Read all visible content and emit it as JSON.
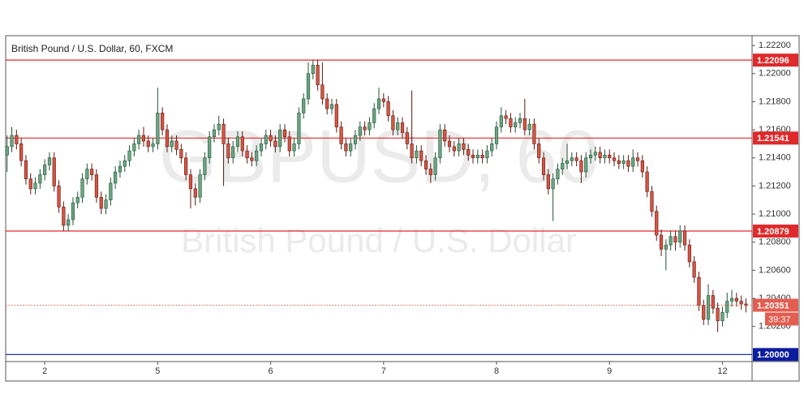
{
  "chart_data": {
    "type": "candlestick",
    "title": "British Pound / U.S. Dollar, 60, FXCM",
    "watermark": "GBPUSD, 60",
    "watermark_subtitle": "British Pound / U.S. Dollar",
    "up_color": "#6ba583",
    "up_border": "#225437",
    "down_color": "#d75442",
    "down_border": "#5b1a13",
    "ylim": [
      1.1995,
      1.2227
    ],
    "yticks": [
      {
        "value": 1.202,
        "label": "1.20200"
      },
      {
        "value": 1.204,
        "label": "1.20400"
      },
      {
        "value": 1.206,
        "label": "1.20600"
      },
      {
        "value": 1.208,
        "label": "1.20800"
      },
      {
        "value": 1.21,
        "label": "1.21000"
      },
      {
        "value": 1.212,
        "label": "1.21200"
      },
      {
        "value": 1.214,
        "label": "1.21400"
      },
      {
        "value": 1.216,
        "label": "1.21600"
      },
      {
        "value": 1.218,
        "label": "1.21800"
      },
      {
        "value": 1.22,
        "label": "1.22000"
      },
      {
        "value": 1.222,
        "label": "1.22200"
      }
    ],
    "xlim": [
      -0.3,
      158.3
    ],
    "xticks": [
      {
        "value": 8,
        "label": "2"
      },
      {
        "value": 32,
        "label": "5"
      },
      {
        "value": 56,
        "label": "6"
      },
      {
        "value": 80,
        "label": "7"
      },
      {
        "value": 104,
        "label": "8"
      },
      {
        "value": 128,
        "label": "9"
      },
      {
        "value": 152,
        "label": "12"
      }
    ],
    "levels": [
      {
        "value": 1.22096,
        "color": "#e0292b"
      },
      {
        "value": 1.21541,
        "color": "#e0292b"
      },
      {
        "value": 1.20879,
        "color": "#e0292b"
      },
      {
        "value": 1.2,
        "label": "1.20000",
        "color": "#0b1c9e"
      }
    ],
    "last_price": {
      "value": 1.20351,
      "color": "#e35d50",
      "countdown": "39:37"
    },
    "candles": [
      [
        1.2142,
        1.2156,
        1.213,
        1.2148
      ],
      [
        1.2148,
        1.2162,
        1.2144,
        1.2156
      ],
      [
        1.2156,
        1.216,
        1.2146,
        1.215
      ],
      [
        1.215,
        1.2154,
        1.2134,
        1.2138
      ],
      [
        1.2138,
        1.2142,
        1.2121,
        1.2125
      ],
      [
        1.2125,
        1.2129,
        1.2114,
        1.2118
      ],
      [
        1.2118,
        1.2126,
        1.2114,
        1.2122
      ],
      [
        1.2122,
        1.2132,
        1.2118,
        1.2128
      ],
      [
        1.2128,
        1.2139,
        1.2124,
        1.2135
      ],
      [
        1.2135,
        1.2144,
        1.2131,
        1.214
      ],
      [
        1.214,
        1.2144,
        1.2116,
        1.212
      ],
      [
        1.212,
        1.2124,
        1.2101,
        1.2105
      ],
      [
        1.2105,
        1.2109,
        1.2088,
        1.2092
      ],
      [
        1.2092,
        1.21,
        1.2088,
        1.2096
      ],
      [
        1.2096,
        1.2112,
        1.2092,
        1.2108
      ],
      [
        1.2108,
        1.2116,
        1.2104,
        1.2112
      ],
      [
        1.2112,
        1.2129,
        1.2108,
        1.2125
      ],
      [
        1.2125,
        1.2136,
        1.2121,
        1.2132
      ],
      [
        1.2132,
        1.2136,
        1.2124,
        1.2128
      ],
      [
        1.2128,
        1.2132,
        1.2108,
        1.2112
      ],
      [
        1.2112,
        1.2116,
        1.21,
        1.2104
      ],
      [
        1.2104,
        1.2114,
        1.21,
        1.211
      ],
      [
        1.211,
        1.2126,
        1.2106,
        1.2122
      ],
      [
        1.2122,
        1.2134,
        1.2118,
        1.213
      ],
      [
        1.213,
        1.2138,
        1.2126,
        1.2134
      ],
      [
        1.2134,
        1.2142,
        1.213,
        1.2138
      ],
      [
        1.2138,
        1.2149,
        1.2134,
        1.2145
      ],
      [
        1.2145,
        1.2154,
        1.2141,
        1.215
      ],
      [
        1.215,
        1.216,
        1.2146,
        1.2156
      ],
      [
        1.2156,
        1.2162,
        1.2148,
        1.2152
      ],
      [
        1.2152,
        1.2156,
        1.2144,
        1.2148
      ],
      [
        1.2148,
        1.2154,
        1.2144,
        1.215
      ],
      [
        1.215,
        1.219,
        1.2146,
        1.2172
      ],
      [
        1.2172,
        1.2176,
        1.2156,
        1.216
      ],
      [
        1.216,
        1.2164,
        1.2144,
        1.2148
      ],
      [
        1.2148,
        1.2156,
        1.2144,
        1.2152
      ],
      [
        1.2152,
        1.2156,
        1.2142,
        1.2146
      ],
      [
        1.2146,
        1.215,
        1.2136,
        1.214
      ],
      [
        1.214,
        1.2144,
        1.2124,
        1.2128
      ],
      [
        1.2128,
        1.2132,
        1.2104,
        1.2118
      ],
      [
        1.2118,
        1.2122,
        1.2106,
        1.2112
      ],
      [
        1.2112,
        1.2132,
        1.2108,
        1.2128
      ],
      [
        1.2128,
        1.2144,
        1.2124,
        1.214
      ],
      [
        1.214,
        1.2159,
        1.2136,
        1.2155
      ],
      [
        1.2155,
        1.2164,
        1.2151,
        1.216
      ],
      [
        1.216,
        1.217,
        1.2156,
        1.2164
      ],
      [
        1.2164,
        1.2168,
        1.212,
        1.215
      ],
      [
        1.215,
        1.2154,
        1.2136,
        1.214
      ],
      [
        1.214,
        1.2152,
        1.2136,
        1.2148
      ],
      [
        1.2148,
        1.2159,
        1.2144,
        1.2155
      ],
      [
        1.2155,
        1.2159,
        1.2141,
        1.2145
      ],
      [
        1.2145,
        1.2149,
        1.2136,
        1.214
      ],
      [
        1.214,
        1.2144,
        1.2134,
        1.2138
      ],
      [
        1.2138,
        1.2149,
        1.2134,
        1.2145
      ],
      [
        1.2145,
        1.2154,
        1.2141,
        1.215
      ],
      [
        1.215,
        1.216,
        1.2146,
        1.2156
      ],
      [
        1.2156,
        1.216,
        1.2148,
        1.2152
      ],
      [
        1.2152,
        1.2156,
        1.2144,
        1.2148
      ],
      [
        1.2148,
        1.2164,
        1.2144,
        1.216
      ],
      [
        1.216,
        1.2164,
        1.2151,
        1.2155
      ],
      [
        1.2155,
        1.2159,
        1.2141,
        1.2145
      ],
      [
        1.2145,
        1.2154,
        1.2141,
        1.215
      ],
      [
        1.215,
        1.2176,
        1.2146,
        1.2172
      ],
      [
        1.2172,
        1.2186,
        1.2168,
        1.2182
      ],
      [
        1.2182,
        1.2208,
        1.2178,
        1.22
      ],
      [
        1.22,
        1.221,
        1.2196,
        1.2206
      ],
      [
        1.2206,
        1.221,
        1.2188,
        1.2192
      ],
      [
        1.2192,
        1.2208,
        1.2178,
        1.2182
      ],
      [
        1.2182,
        1.2186,
        1.2171,
        1.2175
      ],
      [
        1.2175,
        1.2182,
        1.2171,
        1.2178
      ],
      [
        1.2178,
        1.2182,
        1.2158,
        1.2162
      ],
      [
        1.2162,
        1.2166,
        1.2146,
        1.215
      ],
      [
        1.215,
        1.2154,
        1.2141,
        1.2145
      ],
      [
        1.2145,
        1.2154,
        1.2141,
        1.215
      ],
      [
        1.215,
        1.216,
        1.2146,
        1.2156
      ],
      [
        1.2156,
        1.2166,
        1.2152,
        1.2162
      ],
      [
        1.2162,
        1.2166,
        1.2156,
        1.216
      ],
      [
        1.216,
        1.2169,
        1.2156,
        1.2165
      ],
      [
        1.2165,
        1.2179,
        1.2161,
        1.2175
      ],
      [
        1.2175,
        1.219,
        1.2171,
        1.2182
      ],
      [
        1.2182,
        1.2186,
        1.2176,
        1.218
      ],
      [
        1.218,
        1.2184,
        1.2166,
        1.217
      ],
      [
        1.217,
        1.2174,
        1.2156,
        1.216
      ],
      [
        1.216,
        1.2169,
        1.2156,
        1.2165
      ],
      [
        1.2165,
        1.2169,
        1.2154,
        1.2158
      ],
      [
        1.2158,
        1.2162,
        1.2146,
        1.215
      ],
      [
        1.215,
        1.2188,
        1.2136,
        1.214
      ],
      [
        1.214,
        1.2149,
        1.2136,
        1.2145
      ],
      [
        1.2145,
        1.2149,
        1.2134,
        1.2138
      ],
      [
        1.2138,
        1.2142,
        1.2128,
        1.2132
      ],
      [
        1.2132,
        1.2136,
        1.2122,
        1.2128
      ],
      [
        1.2128,
        1.2144,
        1.2124,
        1.214
      ],
      [
        1.214,
        1.2164,
        1.2136,
        1.216
      ],
      [
        1.216,
        1.2164,
        1.2148,
        1.2152
      ],
      [
        1.2152,
        1.2156,
        1.2144,
        1.2148
      ],
      [
        1.2148,
        1.2152,
        1.2141,
        1.2145
      ],
      [
        1.2145,
        1.2154,
        1.2141,
        1.215
      ],
      [
        1.215,
        1.2154,
        1.2142,
        1.2146
      ],
      [
        1.2146,
        1.215,
        1.2138,
        1.2142
      ],
      [
        1.2142,
        1.2146,
        1.2136,
        1.214
      ],
      [
        1.214,
        1.2146,
        1.2136,
        1.2142
      ],
      [
        1.2142,
        1.2146,
        1.2136,
        1.214
      ],
      [
        1.214,
        1.2149,
        1.2136,
        1.2145
      ],
      [
        1.2145,
        1.2154,
        1.2141,
        1.215
      ],
      [
        1.215,
        1.2166,
        1.2146,
        1.2162
      ],
      [
        1.2162,
        1.2176,
        1.2158,
        1.217
      ],
      [
        1.217,
        1.2174,
        1.2164,
        1.2168
      ],
      [
        1.2168,
        1.2172,
        1.2158,
        1.2162
      ],
      [
        1.2162,
        1.2169,
        1.2158,
        1.2165
      ],
      [
        1.2165,
        1.2172,
        1.2161,
        1.2168
      ],
      [
        1.2168,
        1.2182,
        1.2156,
        1.216
      ],
      [
        1.216,
        1.2168,
        1.2156,
        1.2164
      ],
      [
        1.2164,
        1.2168,
        1.2146,
        1.215
      ],
      [
        1.215,
        1.2154,
        1.2136,
        1.214
      ],
      [
        1.214,
        1.2144,
        1.2124,
        1.2128
      ],
      [
        1.2128,
        1.2132,
        1.2114,
        1.2118
      ],
      [
        1.2118,
        1.2129,
        1.2095,
        1.2125
      ],
      [
        1.2125,
        1.2136,
        1.2121,
        1.2132
      ],
      [
        1.2132,
        1.214,
        1.2128,
        1.2136
      ],
      [
        1.2136,
        1.215,
        1.2132,
        1.2138
      ],
      [
        1.2138,
        1.2144,
        1.2134,
        1.214
      ],
      [
        1.214,
        1.2144,
        1.2134,
        1.2138
      ],
      [
        1.2138,
        1.2142,
        1.2122,
        1.213
      ],
      [
        1.213,
        1.2144,
        1.2126,
        1.214
      ],
      [
        1.214,
        1.2146,
        1.2136,
        1.2142
      ],
      [
        1.2142,
        1.2148,
        1.2138,
        1.2144
      ],
      [
        1.2144,
        1.2148,
        1.2136,
        1.214
      ],
      [
        1.214,
        1.2146,
        1.2136,
        1.2142
      ],
      [
        1.2142,
        1.2146,
        1.2136,
        1.214
      ],
      [
        1.214,
        1.2144,
        1.2134,
        1.2138
      ],
      [
        1.2138,
        1.2142,
        1.2132,
        1.2136
      ],
      [
        1.2136,
        1.2142,
        1.2132,
        1.2138
      ],
      [
        1.2138,
        1.2142,
        1.213,
        1.2134
      ],
      [
        1.2134,
        1.2146,
        1.213,
        1.214
      ],
      [
        1.214,
        1.2144,
        1.2134,
        1.2138
      ],
      [
        1.2138,
        1.2142,
        1.2126,
        1.213
      ],
      [
        1.213,
        1.2134,
        1.2112,
        1.2116
      ],
      [
        1.2116,
        1.212,
        1.2098,
        1.2102
      ],
      [
        1.2102,
        1.2106,
        1.2081,
        1.2085
      ],
      [
        1.2085,
        1.2089,
        1.207,
        1.2075
      ],
      [
        1.2075,
        1.2082,
        1.206,
        1.2078
      ],
      [
        1.2078,
        1.2088,
        1.2074,
        1.2084
      ],
      [
        1.2084,
        1.2088,
        1.2074,
        1.208
      ],
      [
        1.208,
        1.2092,
        1.2076,
        1.2088
      ],
      [
        1.2088,
        1.2092,
        1.2074,
        1.2078
      ],
      [
        1.2078,
        1.2082,
        1.2062,
        1.2066
      ],
      [
        1.2066,
        1.207,
        1.2051,
        1.2055
      ],
      [
        1.2055,
        1.2059,
        1.2031,
        1.2035
      ],
      [
        1.2035,
        1.2039,
        1.2021,
        1.2025
      ],
      [
        1.2025,
        1.205,
        1.2021,
        1.2042
      ],
      [
        1.2042,
        1.2046,
        1.2029,
        1.2033
      ],
      [
        1.2033,
        1.2037,
        1.2016,
        1.2024
      ],
      [
        1.2024,
        1.2034,
        1.202,
        1.203
      ],
      [
        1.203,
        1.2044,
        1.2026,
        1.2038
      ],
      [
        1.2038,
        1.2046,
        1.2034,
        1.204
      ],
      [
        1.204,
        1.2044,
        1.2034,
        1.2038
      ],
      [
        1.2038,
        1.2042,
        1.2032,
        1.2036
      ],
      [
        1.2036,
        1.204,
        1.203,
        1.20351
      ]
    ]
  }
}
